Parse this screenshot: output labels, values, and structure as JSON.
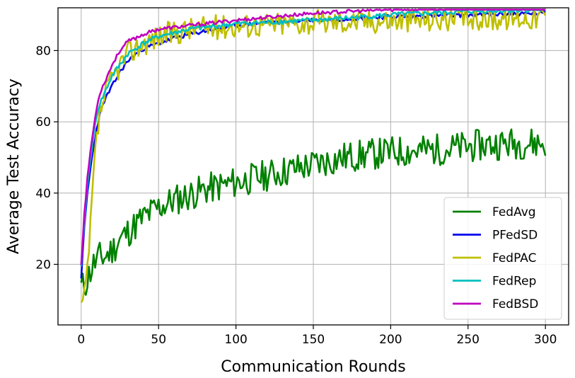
{
  "chart_data": {
    "type": "line",
    "title": "",
    "xlabel": "Communication Rounds",
    "ylabel": "Average Test Accuracy",
    "xlim": [
      -15,
      315
    ],
    "ylim": [
      3,
      92
    ],
    "xticks": [
      0,
      50,
      100,
      150,
      200,
      250,
      300
    ],
    "yticks": [
      20,
      40,
      60,
      80
    ],
    "grid": true,
    "legend_position": "lower-right",
    "series": [
      {
        "name": "FedAvg",
        "color": "#008000",
        "anchors": [
          [
            0,
            13.5
          ],
          [
            2,
            14
          ],
          [
            4,
            16
          ],
          [
            6,
            18
          ],
          [
            8,
            20
          ],
          [
            10,
            21
          ],
          [
            12,
            22
          ],
          [
            15,
            22
          ],
          [
            20,
            24
          ],
          [
            25,
            27
          ],
          [
            30,
            29
          ],
          [
            35,
            31
          ],
          [
            40,
            33
          ],
          [
            45,
            34.5
          ],
          [
            50,
            36
          ],
          [
            55,
            37
          ],
          [
            60,
            38
          ],
          [
            70,
            39.5
          ],
          [
            80,
            41
          ],
          [
            90,
            42
          ],
          [
            100,
            43
          ],
          [
            110,
            44
          ],
          [
            120,
            45
          ],
          [
            130,
            46
          ],
          [
            140,
            47
          ],
          [
            150,
            48
          ],
          [
            160,
            49
          ],
          [
            170,
            50
          ],
          [
            180,
            50.5
          ],
          [
            190,
            51
          ],
          [
            200,
            51.5
          ],
          [
            220,
            52
          ],
          [
            240,
            52.5
          ],
          [
            260,
            53.5
          ],
          [
            280,
            54
          ],
          [
            300,
            54
          ]
        ],
        "noise": 4.5,
        "seed": 11
      },
      {
        "name": "PFedSD",
        "color": "#0000ee",
        "anchors": [
          [
            0,
            16.5
          ],
          [
            2,
            30
          ],
          [
            4,
            40
          ],
          [
            6,
            47
          ],
          [
            8,
            53
          ],
          [
            10,
            58
          ],
          [
            12,
            62
          ],
          [
            15,
            66
          ],
          [
            20,
            70
          ],
          [
            25,
            74
          ],
          [
            30,
            77
          ],
          [
            35,
            79
          ],
          [
            40,
            80.5
          ],
          [
            50,
            82
          ],
          [
            60,
            83.5
          ],
          [
            80,
            85.5
          ],
          [
            100,
            87
          ],
          [
            120,
            88
          ],
          [
            150,
            88.5
          ],
          [
            200,
            89.5
          ],
          [
            250,
            90
          ],
          [
            300,
            90.5
          ]
        ],
        "noise": 0.6,
        "seed": 23
      },
      {
        "name": "FedPAC",
        "color": "#bfbf00",
        "anchors": [
          [
            0,
            8
          ],
          [
            2,
            10
          ],
          [
            4,
            18
          ],
          [
            6,
            30
          ],
          [
            8,
            45
          ],
          [
            10,
            55
          ],
          [
            12,
            62
          ],
          [
            15,
            67
          ],
          [
            20,
            72
          ],
          [
            25,
            76
          ],
          [
            30,
            79
          ],
          [
            40,
            82
          ],
          [
            50,
            84
          ],
          [
            70,
            86
          ],
          [
            100,
            87
          ],
          [
            150,
            88
          ],
          [
            200,
            88.5
          ],
          [
            250,
            89
          ],
          [
            300,
            89.5
          ]
        ],
        "noise": 3.5,
        "seed": 37
      },
      {
        "name": "FedRep",
        "color": "#00bfbf",
        "anchors": [
          [
            0,
            19
          ],
          [
            2,
            32
          ],
          [
            4,
            42
          ],
          [
            6,
            50
          ],
          [
            8,
            56
          ],
          [
            10,
            62
          ],
          [
            12,
            65
          ],
          [
            15,
            68
          ],
          [
            20,
            73
          ],
          [
            25,
            76
          ],
          [
            30,
            79
          ],
          [
            40,
            82
          ],
          [
            50,
            84
          ],
          [
            70,
            86
          ],
          [
            100,
            87.5
          ],
          [
            150,
            88.5
          ],
          [
            200,
            90
          ],
          [
            250,
            91
          ],
          [
            300,
            91.5
          ]
        ],
        "noise": 0.7,
        "seed": 41
      },
      {
        "name": "FedBSD",
        "color": "#bf00bf",
        "anchors": [
          [
            0,
            20
          ],
          [
            2,
            34
          ],
          [
            4,
            44
          ],
          [
            6,
            52
          ],
          [
            8,
            58
          ],
          [
            10,
            64
          ],
          [
            12,
            68
          ],
          [
            15,
            71
          ],
          [
            20,
            76
          ],
          [
            25,
            80
          ],
          [
            30,
            82.5
          ],
          [
            40,
            84.5
          ],
          [
            50,
            86
          ],
          [
            70,
            87
          ],
          [
            100,
            88.5
          ],
          [
            150,
            90.5
          ],
          [
            200,
            91.5
          ],
          [
            250,
            92
          ],
          [
            300,
            92.5
          ]
        ],
        "noise": 0.5,
        "seed": 53
      }
    ]
  }
}
